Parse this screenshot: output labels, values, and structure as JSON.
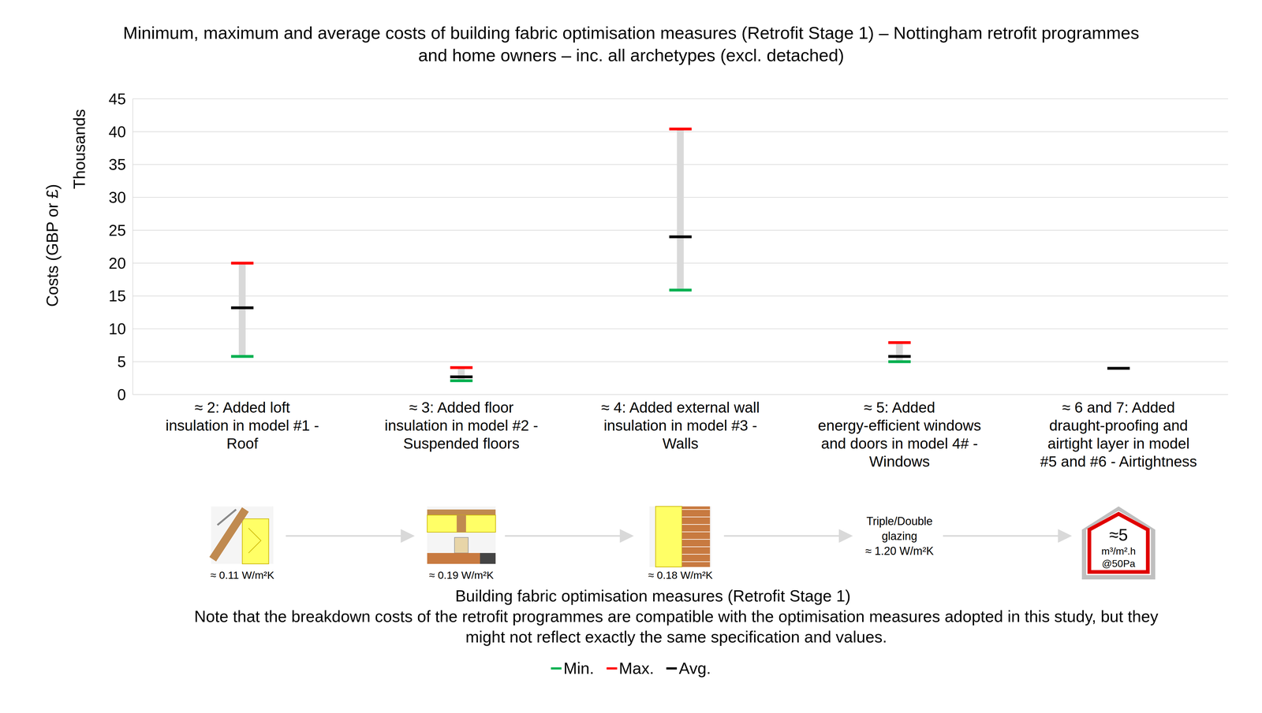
{
  "chart_data": {
    "type": "range",
    "title": "Minimum, maximum and average costs of building fabric optimisation measures (Retrofit Stage 1) – Nottingham retrofit programmes and home owners – inc. all archetypes (excl. detached)",
    "ylabel": "Costs (GBP or £)",
    "yunit": "Thousands",
    "xlabel": "Building fabric optimisation measures (Retrofit Stage 1)",
    "note": "Note that the breakdown costs of the retrofit programmes are compatible with the optimisation measures adopted in this study, but they might not reflect exactly the same specification and values.",
    "categories": [
      "≈ 2: Added loft insulation in model #1 - Roof",
      "≈ 3: Added floor insulation in model #2 - Suspended floors",
      "≈ 4: Added external wall insulation in model #3 - Walls",
      "≈ 5: Added energy-efficient windows and doors in model 4# - Windows",
      "≈ 6 and 7: Added draught-proofing and airtight layer in model #5 and #6 - Airtightness"
    ],
    "series": [
      {
        "name": "Min.",
        "color": "#00b050",
        "values": [
          5.8,
          2.1,
          15.9,
          5.0,
          null
        ]
      },
      {
        "name": "Max.",
        "color": "#ff0000",
        "values": [
          20.0,
          4.1,
          40.4,
          7.9,
          null
        ]
      },
      {
        "name": "Avg.",
        "color": "#000000",
        "values": [
          13.2,
          2.7,
          24.0,
          5.8,
          4.0
        ]
      }
    ],
    "annotations": [
      [
        "≈ 0.11 W/m²K"
      ],
      [
        "≈ 0.19 W/m²K"
      ],
      [
        "≈ 0.18 W/m²K"
      ],
      [
        "Triple/Double",
        "glazing",
        "≈ 1.20 W/m²K"
      ],
      [
        "≈5",
        "m³/m².h",
        "@50Pa"
      ]
    ],
    "ylim": [
      0,
      45
    ],
    "yticks": [
      0,
      5,
      10,
      15,
      20,
      25,
      30,
      35,
      40,
      45
    ],
    "grid": true,
    "marker": "dash",
    "legend": "bottom"
  }
}
